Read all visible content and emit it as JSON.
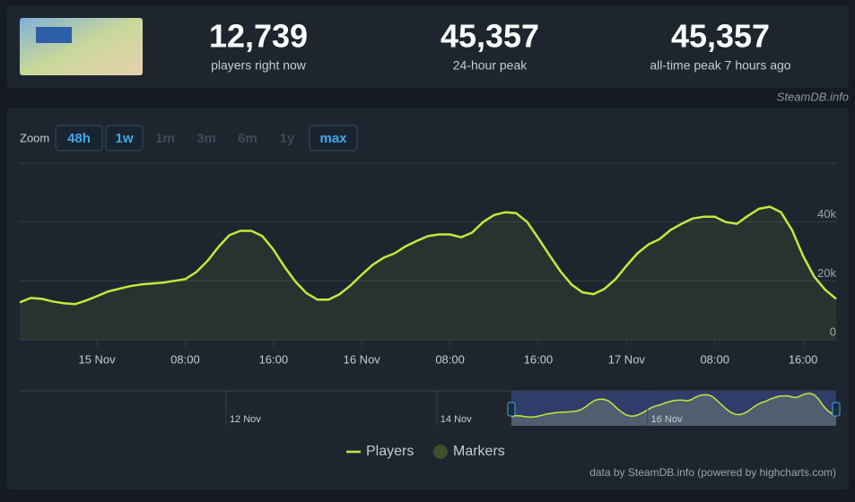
{
  "header": {
    "stats": [
      {
        "value": "12,739",
        "label": "players right now"
      },
      {
        "value": "45,357",
        "label": "24-hour peak"
      },
      {
        "value": "45,357",
        "label": "all-time peak 7 hours ago"
      }
    ],
    "brand": "SteamDB.info"
  },
  "zoom": {
    "label": "Zoom",
    "buttons": [
      {
        "label": "48h",
        "enabled": true
      },
      {
        "label": "1w",
        "enabled": true
      },
      {
        "label": "1m",
        "enabled": false
      },
      {
        "label": "3m",
        "enabled": false
      },
      {
        "label": "6m",
        "enabled": false
      },
      {
        "label": "1y",
        "enabled": false
      },
      {
        "label": "max",
        "enabled": true
      }
    ]
  },
  "chart_data": {
    "type": "line",
    "x": [
      -7,
      -6,
      -5,
      -4,
      -3,
      -2,
      -1,
      0,
      1,
      2,
      3,
      4,
      5,
      6,
      7,
      8,
      9,
      10,
      11,
      12,
      13,
      14,
      15,
      16,
      17,
      18,
      19,
      20,
      21,
      22,
      23,
      24,
      25,
      26,
      27,
      28,
      29,
      30,
      31,
      32,
      33,
      34,
      35,
      36,
      37,
      38,
      39,
      40,
      41,
      42,
      43,
      44,
      45,
      46,
      47,
      48,
      49,
      50,
      51,
      52,
      53,
      54,
      55,
      56,
      57,
      58,
      59,
      60,
      61,
      62,
      63,
      64,
      65,
      66,
      67
    ],
    "series": [
      {
        "name": "Players",
        "color": "#c4e93a",
        "values": [
          12700,
          14200,
          13900,
          13000,
          12400,
          12100,
          13300,
          14800,
          16400,
          17300,
          18200,
          18800,
          19100,
          19400,
          20000,
          20600,
          23000,
          26700,
          31500,
          35500,
          37000,
          37000,
          35200,
          30600,
          24800,
          19700,
          15800,
          13600,
          13600,
          15500,
          18500,
          22100,
          25500,
          27900,
          29400,
          31800,
          33600,
          35200,
          35800,
          35800,
          34800,
          36400,
          40000,
          42400,
          43300,
          43000,
          40000,
          34500,
          28800,
          23300,
          18800,
          16100,
          15500,
          17300,
          20600,
          25200,
          29400,
          32400,
          34200,
          37300,
          39400,
          41200,
          41800,
          41800,
          40000,
          39400,
          42100,
          44500,
          45200,
          43300,
          37300,
          28500,
          21500,
          17000,
          13900
        ]
      }
    ],
    "markers": {
      "name": "Markers",
      "color": "#3d4f2b"
    },
    "xlim": [
      -7,
      67
    ],
    "xticks": [
      {
        "value": 0,
        "label": "15 Nov"
      },
      {
        "value": 8,
        "label": "08:00"
      },
      {
        "value": 16,
        "label": "16:00"
      },
      {
        "value": 24,
        "label": "16 Nov"
      },
      {
        "value": 32,
        "label": "08:00"
      },
      {
        "value": 40,
        "label": "16:00"
      },
      {
        "value": 48,
        "label": "17 Nov"
      },
      {
        "value": 56,
        "label": "08:00"
      },
      {
        "value": 64,
        "label": "16:00"
      }
    ],
    "ylim": [
      0,
      60000
    ],
    "yticks": [
      0,
      {
        "value": 20000,
        "label": "20k"
      },
      {
        "value": 40000,
        "label": "40k"
      }
    ],
    "grid": true,
    "navigator": {
      "xlim": [
        -119,
        67
      ],
      "xticks": [
        {
          "value": -72,
          "label": "12 Nov"
        },
        {
          "value": -24,
          "label": "14 Nov"
        },
        {
          "value": 24,
          "label": "16 Nov"
        }
      ]
    },
    "credits": "data by SteamDB.info (powered by highcharts.com)"
  }
}
